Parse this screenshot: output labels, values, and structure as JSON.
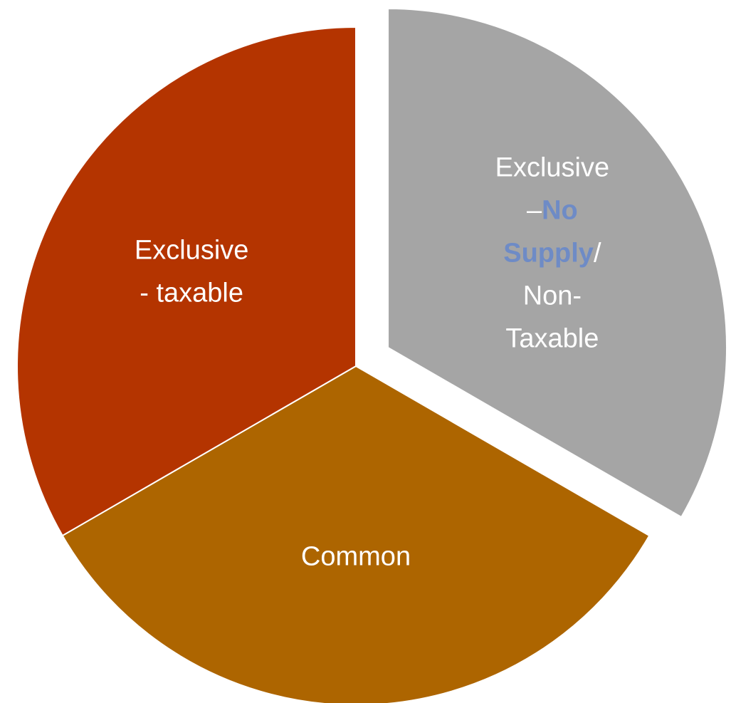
{
  "chart_data": {
    "type": "pie",
    "slices": [
      {
        "value": 1,
        "color": "#A5A5A5",
        "exploded": true,
        "label_lines": [
          [
            {
              "text": "Exclusive",
              "highlight": false
            }
          ],
          [
            {
              "text": "–",
              "highlight": false
            },
            {
              "text": "No",
              "highlight": true
            }
          ],
          [
            {
              "text": "Supply",
              "highlight": true
            },
            {
              "text": "/",
              "highlight": false
            }
          ],
          [
            {
              "text": "Non-",
              "highlight": false
            }
          ],
          [
            {
              "text": "Taxable",
              "highlight": false
            }
          ]
        ]
      },
      {
        "value": 1,
        "color": "#AD6500",
        "exploded": false,
        "label_lines": [
          [
            {
              "text": "Common",
              "highlight": false
            }
          ]
        ]
      },
      {
        "value": 1,
        "color": "#B43400",
        "exploded": false,
        "label_lines": [
          [
            {
              "text": "Exclusive",
              "highlight": false
            }
          ],
          [
            {
              "text": "- taxable",
              "highlight": false
            }
          ]
        ]
      }
    ],
    "label_color": "#FFFFFF",
    "highlight_color": "#6E8BC6",
    "start_angle_deg": 0,
    "direction": "clockwise"
  }
}
